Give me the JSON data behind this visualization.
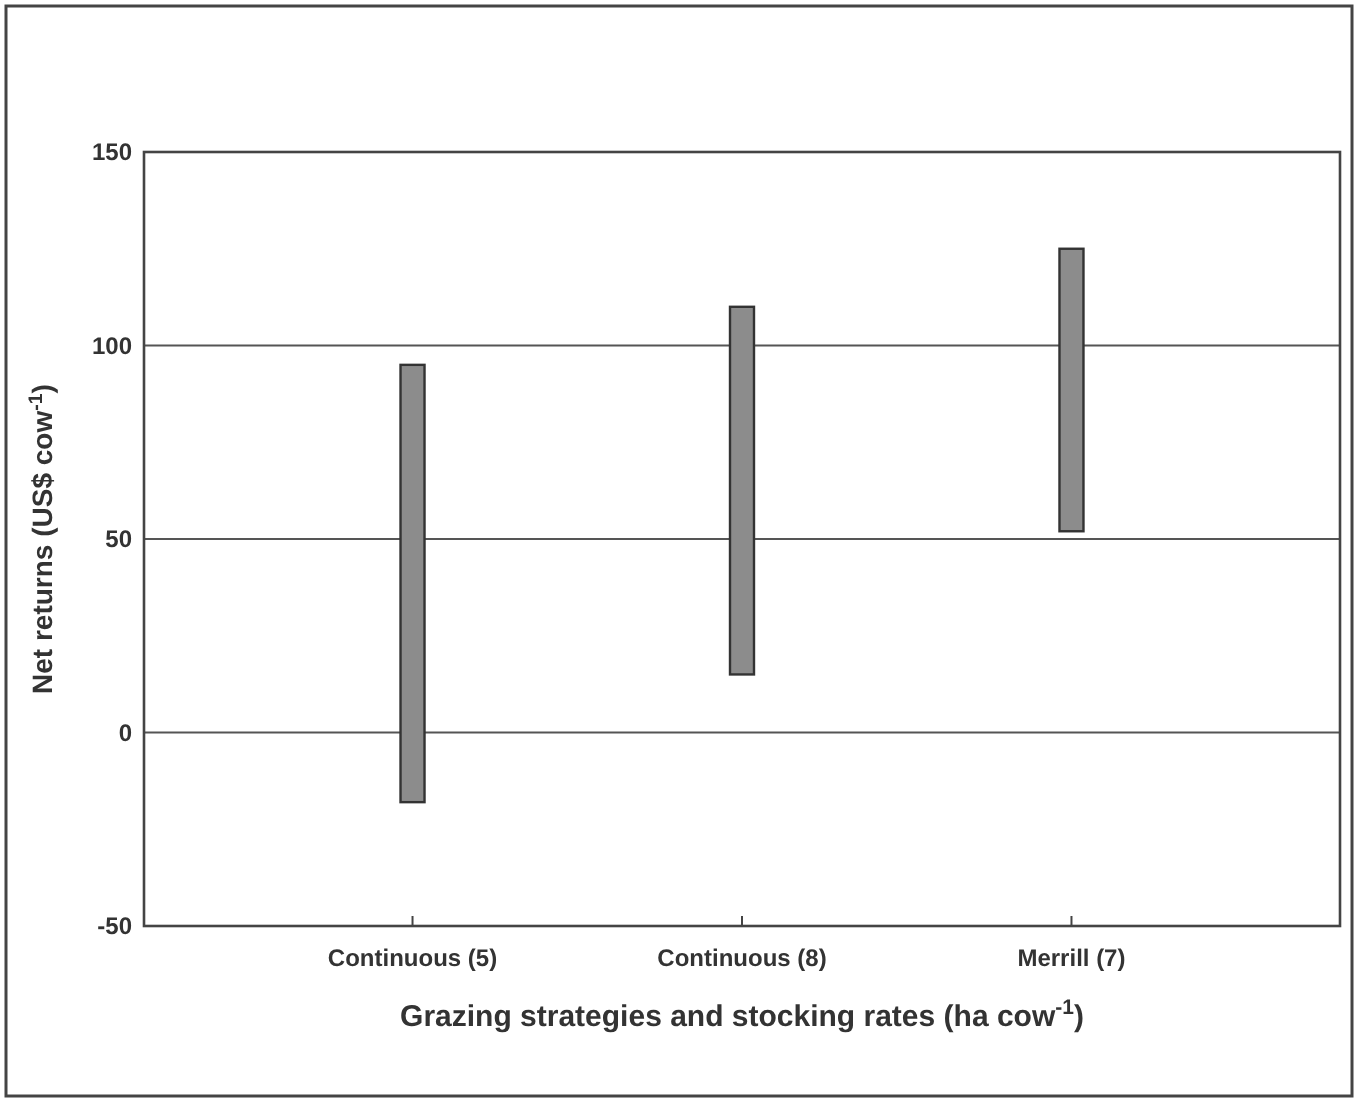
{
  "chart_data": {
    "type": "bar",
    "xlabel": "Grazing strategies and stocking rates (ha  cow$^{-1}$)",
    "ylabel": "Net returns (US$  cow$^{-1}$)",
    "categories": [
      "Continuous (5)",
      "Continuous (8)",
      "Merrill (7)"
    ],
    "base": [
      -18,
      15,
      52
    ],
    "values": [
      113,
      95,
      73
    ],
    "color": "#8c8c8c",
    "ylim": [
      -50,
      150
    ],
    "yticks": [
      -50,
      0,
      50,
      100,
      150
    ],
    "grid": "y"
  }
}
